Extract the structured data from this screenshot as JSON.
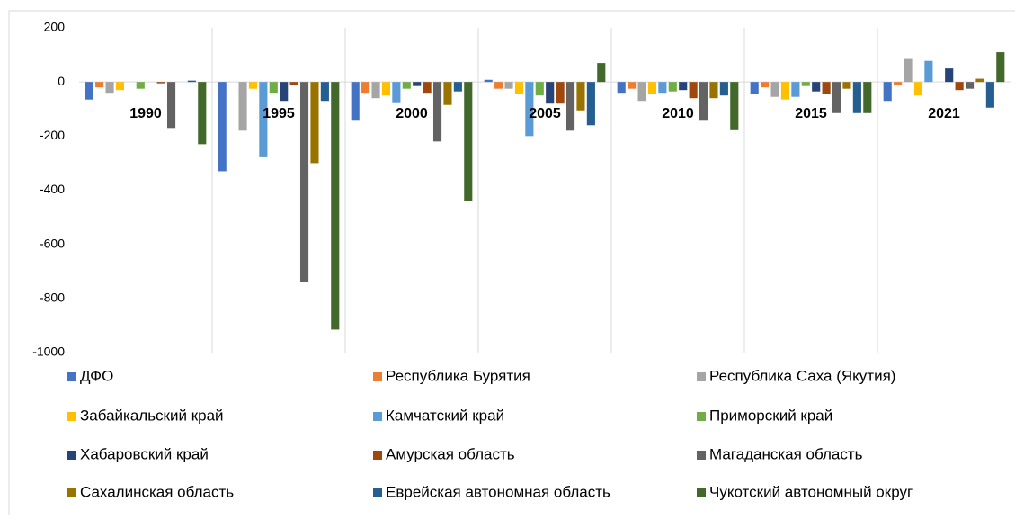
{
  "chart_data": {
    "type": "bar",
    "categories": [
      "1990",
      "1995",
      "2000",
      "2005",
      "2010",
      "2015",
      "2021"
    ],
    "series": [
      {
        "name": "ДФО",
        "color": "#4472c4",
        "values": [
          -65,
          -330,
          -140,
          8,
          -40,
          -45,
          -70
        ]
      },
      {
        "name": "Республика Бурятия",
        "color": "#ed7d31",
        "values": [
          -20,
          0,
          -40,
          -25,
          -25,
          -20,
          -10
        ]
      },
      {
        "name": "Республика Саха (Якутия)",
        "color": "#a5a5a5",
        "values": [
          -40,
          -180,
          -60,
          -25,
          -70,
          -55,
          85
        ]
      },
      {
        "name": "Забайкальский край",
        "color": "#ffc000",
        "values": [
          -30,
          -25,
          -50,
          -45,
          -45,
          -65,
          -50
        ]
      },
      {
        "name": "Камчатский край",
        "color": "#5b9bd5",
        "values": [
          0,
          -275,
          -75,
          -200,
          -40,
          -55,
          78
        ]
      },
      {
        "name": "Приморский край",
        "color": "#70ad47",
        "values": [
          -25,
          -40,
          -25,
          -50,
          -35,
          -15,
          0
        ]
      },
      {
        "name": "Хабаровский край",
        "color": "#264478",
        "values": [
          0,
          -70,
          -15,
          -80,
          -30,
          -35,
          50
        ]
      },
      {
        "name": "Амурская область",
        "color": "#9e480e",
        "values": [
          -5,
          -10,
          -40,
          -80,
          -60,
          -45,
          -30
        ]
      },
      {
        "name": "Магаданская область",
        "color": "#636363",
        "values": [
          -170,
          -740,
          -220,
          -180,
          -140,
          -115,
          -25
        ]
      },
      {
        "name": "Сахалинская область",
        "color": "#997300",
        "values": [
          0,
          -300,
          -85,
          -105,
          -60,
          -25,
          12
        ]
      },
      {
        "name": "Еврейская автономная область",
        "color": "#255e91",
        "values": [
          5,
          -70,
          -35,
          -160,
          -50,
          -115,
          -95
        ]
      },
      {
        "name": "Чукотский автономный округ",
        "color": "#43682b",
        "values": [
          -230,
          -915,
          -440,
          70,
          -175,
          -115,
          110
        ]
      }
    ],
    "ylim": [
      -1000,
      200
    ],
    "yticks": [
      -1000,
      -800,
      -600,
      -400,
      -200,
      0,
      200
    ],
    "legend": "bottom"
  }
}
